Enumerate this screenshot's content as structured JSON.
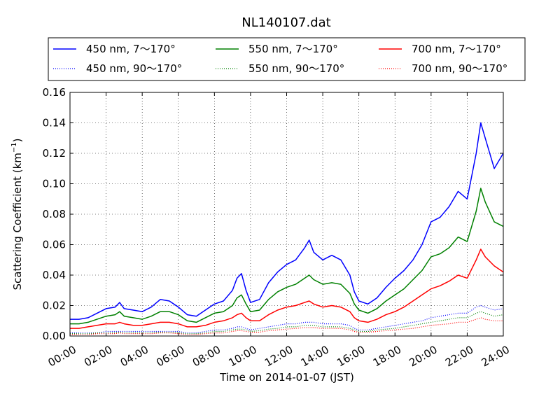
{
  "chart_data": {
    "type": "line",
    "title": "NL140107.dat",
    "xlabel": "Time on 2014-01-07 (JST)",
    "ylabel": "Scattering Coefficient (km",
    "ylabel_sup": "−1",
    "ylabel_close": ")",
    "xlim": [
      0,
      24
    ],
    "ylim": [
      0,
      0.16
    ],
    "grid": true,
    "legend_position": "top",
    "x_ticks": [
      {
        "v": 0,
        "label": "00:00"
      },
      {
        "v": 2,
        "label": "02:00"
      },
      {
        "v": 4,
        "label": "04:00"
      },
      {
        "v": 6,
        "label": "06:00"
      },
      {
        "v": 8,
        "label": "08:00"
      },
      {
        "v": 10,
        "label": "10:00"
      },
      {
        "v": 12,
        "label": "12:00"
      },
      {
        "v": 14,
        "label": "14:00"
      },
      {
        "v": 16,
        "label": "16:00"
      },
      {
        "v": 18,
        "label": "18:00"
      },
      {
        "v": 20,
        "label": "20:00"
      },
      {
        "v": 22,
        "label": "22:00"
      },
      {
        "v": 24,
        "label": "24:00"
      }
    ],
    "y_ticks": [
      {
        "v": 0,
        "label": "0.00"
      },
      {
        "v": 0.02,
        "label": "0.02"
      },
      {
        "v": 0.04,
        "label": "0.04"
      },
      {
        "v": 0.06,
        "label": "0.06"
      },
      {
        "v": 0.08,
        "label": "0.08"
      },
      {
        "v": 0.1,
        "label": "0.10"
      },
      {
        "v": 0.12,
        "label": "0.12"
      },
      {
        "v": 0.14,
        "label": "0.14"
      },
      {
        "v": 0.16,
        "label": "0.16"
      }
    ],
    "x": [
      0,
      0.5,
      1,
      1.5,
      2,
      2.5,
      2.75,
      3,
      3.5,
      4,
      4.5,
      5,
      5.5,
      6,
      6.5,
      7,
      7.5,
      8,
      8.5,
      9,
      9.25,
      9.5,
      9.75,
      10,
      10.5,
      11,
      11.5,
      12,
      12.5,
      13,
      13.25,
      13.5,
      14,
      14.5,
      15,
      15.5,
      15.75,
      16,
      16.5,
      17,
      17.5,
      18,
      18.5,
      19,
      19.5,
      20,
      20.5,
      21,
      21.5,
      22,
      22.5,
      22.75,
      23,
      23.5,
      24
    ],
    "series": [
      {
        "name": "450 nm, 7～170°",
        "color": "#0000ff",
        "style": "solid",
        "values": [
          0.011,
          0.011,
          0.012,
          0.015,
          0.018,
          0.019,
          0.022,
          0.018,
          0.017,
          0.016,
          0.019,
          0.024,
          0.023,
          0.019,
          0.014,
          0.013,
          0.017,
          0.021,
          0.023,
          0.03,
          0.038,
          0.041,
          0.03,
          0.022,
          0.024,
          0.035,
          0.042,
          0.047,
          0.05,
          0.058,
          0.063,
          0.055,
          0.05,
          0.053,
          0.05,
          0.04,
          0.029,
          0.023,
          0.021,
          0.025,
          0.032,
          0.038,
          0.043,
          0.05,
          0.06,
          0.075,
          0.078,
          0.085,
          0.095,
          0.09,
          0.12,
          0.14,
          0.13,
          0.11,
          0.12
        ]
      },
      {
        "name": "550 nm, 7～170°",
        "color": "#008000",
        "style": "solid",
        "values": [
          0.008,
          0.008,
          0.009,
          0.011,
          0.013,
          0.014,
          0.016,
          0.013,
          0.012,
          0.011,
          0.013,
          0.016,
          0.016,
          0.014,
          0.01,
          0.009,
          0.012,
          0.015,
          0.016,
          0.02,
          0.025,
          0.027,
          0.021,
          0.016,
          0.017,
          0.024,
          0.029,
          0.032,
          0.034,
          0.038,
          0.04,
          0.037,
          0.034,
          0.035,
          0.034,
          0.028,
          0.021,
          0.017,
          0.015,
          0.018,
          0.023,
          0.027,
          0.031,
          0.037,
          0.043,
          0.052,
          0.054,
          0.058,
          0.065,
          0.062,
          0.082,
          0.097,
          0.088,
          0.075,
          0.072
        ]
      },
      {
        "name": "700 nm, 7～170°",
        "color": "#ff0000",
        "style": "solid",
        "values": [
          0.005,
          0.005,
          0.006,
          0.007,
          0.008,
          0.008,
          0.009,
          0.008,
          0.007,
          0.007,
          0.008,
          0.009,
          0.009,
          0.008,
          0.006,
          0.006,
          0.007,
          0.009,
          0.01,
          0.012,
          0.014,
          0.015,
          0.012,
          0.01,
          0.01,
          0.014,
          0.017,
          0.019,
          0.02,
          0.022,
          0.023,
          0.021,
          0.019,
          0.02,
          0.019,
          0.016,
          0.012,
          0.01,
          0.009,
          0.011,
          0.014,
          0.016,
          0.019,
          0.023,
          0.027,
          0.031,
          0.033,
          0.036,
          0.04,
          0.038,
          0.05,
          0.057,
          0.052,
          0.046,
          0.042
        ]
      },
      {
        "name": "450 nm, 90～170°",
        "color": "#0000ff",
        "style": "dotted",
        "values": [
          0.002,
          0.002,
          0.002,
          0.002,
          0.003,
          0.003,
          0.003,
          0.003,
          0.003,
          0.003,
          0.003,
          0.003,
          0.003,
          0.003,
          0.002,
          0.002,
          0.003,
          0.004,
          0.004,
          0.005,
          0.006,
          0.006,
          0.005,
          0.004,
          0.005,
          0.006,
          0.007,
          0.008,
          0.008,
          0.009,
          0.009,
          0.009,
          0.008,
          0.008,
          0.008,
          0.007,
          0.005,
          0.004,
          0.004,
          0.005,
          0.006,
          0.007,
          0.008,
          0.009,
          0.01,
          0.012,
          0.013,
          0.014,
          0.015,
          0.015,
          0.019,
          0.02,
          0.019,
          0.017,
          0.018
        ]
      },
      {
        "name": "550 nm, 90～170°",
        "color": "#008000",
        "style": "dotted",
        "values": [
          0.0015,
          0.0015,
          0.0015,
          0.002,
          0.002,
          0.002,
          0.0025,
          0.002,
          0.002,
          0.002,
          0.002,
          0.0025,
          0.0025,
          0.002,
          0.0015,
          0.0015,
          0.002,
          0.003,
          0.003,
          0.004,
          0.0045,
          0.0045,
          0.004,
          0.003,
          0.0035,
          0.0045,
          0.005,
          0.006,
          0.006,
          0.007,
          0.007,
          0.007,
          0.006,
          0.006,
          0.006,
          0.005,
          0.004,
          0.003,
          0.003,
          0.004,
          0.0045,
          0.005,
          0.006,
          0.007,
          0.008,
          0.009,
          0.01,
          0.011,
          0.012,
          0.012,
          0.015,
          0.016,
          0.015,
          0.013,
          0.014
        ]
      },
      {
        "name": "700 nm, 90～170°",
        "color": "#ff0000",
        "style": "dotted",
        "values": [
          0.001,
          0.001,
          0.001,
          0.0015,
          0.0015,
          0.0015,
          0.002,
          0.0015,
          0.0015,
          0.0015,
          0.0015,
          0.002,
          0.002,
          0.0015,
          0.001,
          0.001,
          0.0015,
          0.002,
          0.002,
          0.003,
          0.0035,
          0.0035,
          0.003,
          0.0025,
          0.0025,
          0.0035,
          0.004,
          0.0045,
          0.005,
          0.0055,
          0.0055,
          0.0055,
          0.005,
          0.005,
          0.005,
          0.004,
          0.003,
          0.0025,
          0.0025,
          0.003,
          0.0035,
          0.004,
          0.0045,
          0.005,
          0.006,
          0.007,
          0.0075,
          0.008,
          0.009,
          0.009,
          0.011,
          0.012,
          0.011,
          0.01,
          0.01
        ]
      }
    ]
  }
}
